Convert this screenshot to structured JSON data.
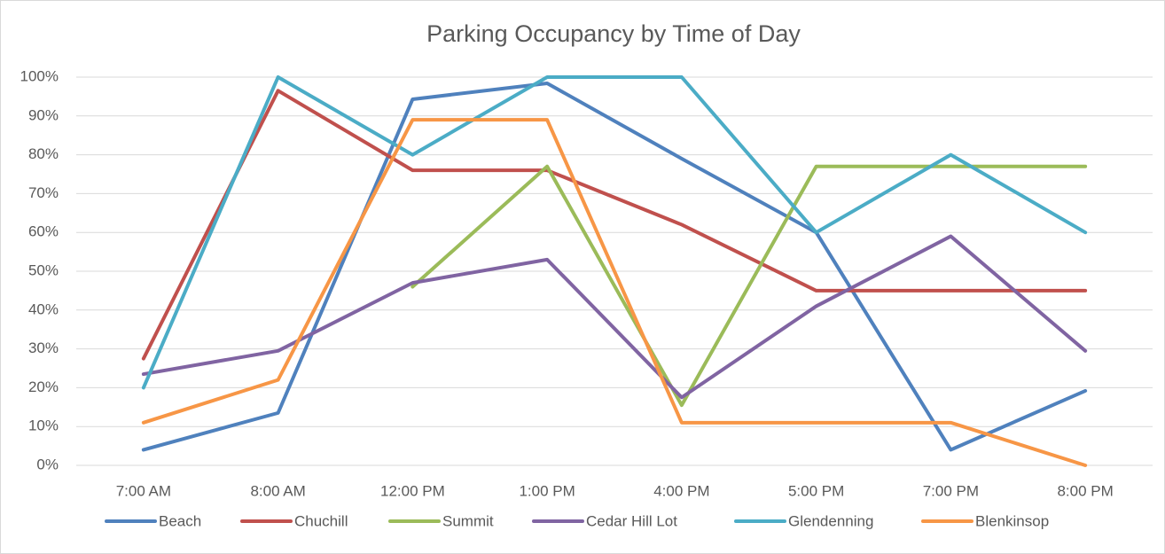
{
  "chart_data": {
    "type": "line",
    "title": "Parking Occupancy by Time of Day",
    "categories": [
      "7:00 AM",
      "8:00 AM",
      "12:00 PM",
      "1:00 PM",
      "4:00 PM",
      "5:00 PM",
      "7:00 PM",
      "8:00 PM"
    ],
    "series": [
      {
        "name": "Beach",
        "color": "#4f81bd",
        "values": [
          4,
          13.5,
          94.3,
          98.4,
          79,
          60,
          4,
          19.2
        ]
      },
      {
        "name": "Chuchill",
        "color": "#c0504d",
        "values": [
          27.5,
          96.5,
          76,
          76,
          62,
          45,
          45,
          45
        ]
      },
      {
        "name": "Summit",
        "color": "#9bbb59",
        "values": [
          null,
          null,
          46,
          77,
          15.5,
          77,
          77,
          77
        ]
      },
      {
        "name": "Cedar Hill Lot",
        "color": "#8064a2",
        "values": [
          23.5,
          29.5,
          47,
          53,
          17.5,
          41,
          59,
          29.5
        ]
      },
      {
        "name": "Glendenning",
        "color": "#4bacc6",
        "values": [
          20,
          100,
          80,
          100,
          100,
          60,
          80,
          60
        ]
      },
      {
        "name": "Blenkinsop",
        "color": "#f79646",
        "values": [
          11,
          22,
          89,
          89,
          11,
          11,
          11,
          0
        ]
      }
    ],
    "ylim": [
      0,
      100
    ],
    "yticks": [
      {
        "value": 0,
        "label": "0%"
      },
      {
        "value": 10,
        "label": "10%"
      },
      {
        "value": 20,
        "label": "20%"
      },
      {
        "value": 30,
        "label": "30%"
      },
      {
        "value": 40,
        "label": "40%"
      },
      {
        "value": 50,
        "label": "50%"
      },
      {
        "value": 60,
        "label": "60%"
      },
      {
        "value": 70,
        "label": "70%"
      },
      {
        "value": 80,
        "label": "80%"
      },
      {
        "value": 90,
        "label": "90%"
      },
      {
        "value": 100,
        "label": "100%"
      }
    ],
    "grid": true,
    "legend": "bottom"
  }
}
